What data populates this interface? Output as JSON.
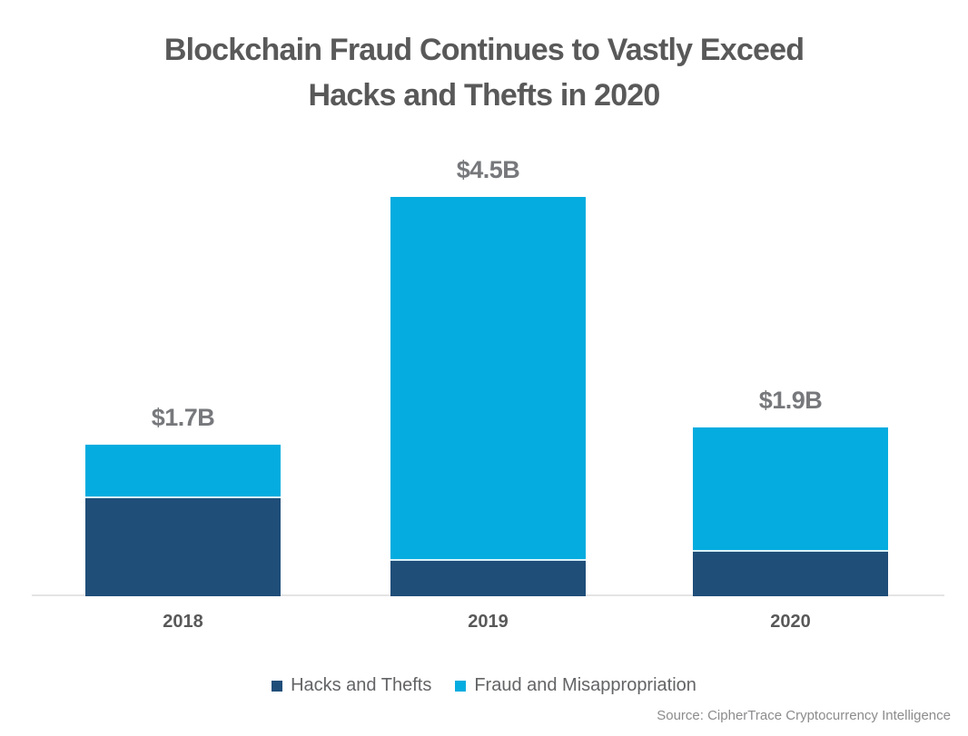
{
  "page": {
    "background": "#ffffff"
  },
  "title": {
    "line1": "Blockchain Fraud Continues to Vastly Exceed",
    "line2": "Hacks and Thefts in 2020",
    "color": "#595959"
  },
  "source": "Source: CipherTrace Cryptocurrency Intelligence",
  "colors": {
    "hacks": "#1F4E79",
    "fraud": "#04ACDF",
    "axis_line": "#e4e4e4",
    "value_label": "#77787b",
    "tick_label": "#595959"
  },
  "chart_data": {
    "type": "bar",
    "stacked": true,
    "title": "Blockchain Fraud Continues to Vastly Exceed Hacks and Thefts in 2020",
    "unit": "USD billions",
    "categories": [
      "2018",
      "2019",
      "2020"
    ],
    "series": [
      {
        "name": "Hacks and Thefts",
        "color": "#1F4E79",
        "values": [
          1.1,
          0.4,
          0.5
        ]
      },
      {
        "name": "Fraud and Misappropriation",
        "color": "#04ACDF",
        "values": [
          0.6,
          4.1,
          1.4
        ]
      }
    ],
    "totals": [
      1.7,
      4.5,
      1.9
    ],
    "total_labels": [
      "$1.7B",
      "$4.5B",
      "$1.9B"
    ],
    "xlabel": "",
    "ylabel": "",
    "ylim": [
      0,
      4.6
    ],
    "grid": false,
    "y_axis_ticks_visible": false,
    "legend_position": "bottom"
  }
}
